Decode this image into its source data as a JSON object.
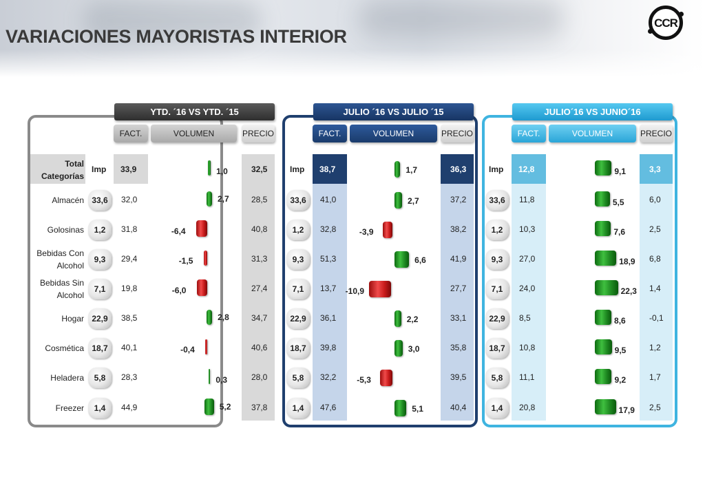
{
  "title": "VARIACIONES MAYORISTAS INTERIOR",
  "logo_text": "CCR",
  "colors": {
    "positive": "#1f8a22",
    "negative": "#c81b1b"
  },
  "chart_data": [
    {
      "type": "table",
      "title": "YTD. ´16 VS YTD. ´15",
      "columns": [
        "FACT.",
        "VOLUMEN",
        "PRECIO"
      ],
      "imp_label": "Imp",
      "total_label": "Total Categorías",
      "total": {
        "fact": "33,9",
        "volumen": "1,0",
        "precio": "32,5"
      },
      "categories": [
        "Almacén",
        "Golosinas",
        "Bebidas Con Alcohol",
        "Bebidas Sin Alcohol",
        "Hogar",
        "Cosmética",
        "Heladera",
        "Freezer"
      ],
      "imp": [
        "33,6",
        "1,2",
        "9,3",
        "7,1",
        "22,9",
        "18,7",
        "5,8",
        "1,4"
      ],
      "fact": [
        "32,0",
        "31,8",
        "29,4",
        "19,8",
        "38,5",
        "40,1",
        "28,3",
        "44,9"
      ],
      "volumen": [
        "2,7",
        "-6,4",
        "-1,5",
        "-6,0",
        "2,8",
        "-0,4",
        "0,3",
        "5,2"
      ],
      "precio": [
        "28,5",
        "40,8",
        "31,3",
        "27,4",
        "34,7",
        "40,6",
        "28,0",
        "37,8"
      ]
    },
    {
      "type": "table",
      "title": "JULIO ´16 VS JULIO ´15",
      "columns": [
        "FACT.",
        "VOLUMEN",
        "PRECIO"
      ],
      "imp_label": "Imp",
      "total": {
        "fact": "38,7",
        "volumen": "1,7",
        "precio": "36,3"
      },
      "imp": [
        "33,6",
        "1,2",
        "9,3",
        "7,1",
        "22,9",
        "18,7",
        "5,8",
        "1,4"
      ],
      "fact": [
        "41,0",
        "32,8",
        "51,3",
        "13,7",
        "36,1",
        "39,8",
        "32,2",
        "47,6"
      ],
      "volumen": [
        "2,7",
        "-3,9",
        "6,6",
        "-10,9",
        "2,2",
        "3,0",
        "-5,3",
        "5,1"
      ],
      "precio": [
        "37,2",
        "38,2",
        "41,9",
        "27,7",
        "33,1",
        "35,8",
        "39,5",
        "40,4"
      ]
    },
    {
      "type": "table",
      "title": "JULIO´16 VS JUNIO´16",
      "columns": [
        "FACT.",
        "VOLUMEN",
        "PRECIO"
      ],
      "imp_label": "Imp",
      "total": {
        "fact": "12,8",
        "volumen": "9,1",
        "precio": "3,3"
      },
      "imp": [
        "33,6",
        "1,2",
        "9,3",
        "7,1",
        "22,9",
        "18,7",
        "5,8",
        "1,4"
      ],
      "fact": [
        "11,8",
        "10,3",
        "27,0",
        "24,0",
        "8,5",
        "10,8",
        "11,1",
        "20,8"
      ],
      "volumen": [
        "5,5",
        "7,6",
        "18,9",
        "22,3",
        "8,6",
        "9,5",
        "9,2",
        "17,9"
      ],
      "precio": [
        "6,0",
        "2,5",
        "6,8",
        "1,4",
        "-0,1",
        "1,2",
        "1,7",
        "2,5"
      ]
    }
  ]
}
